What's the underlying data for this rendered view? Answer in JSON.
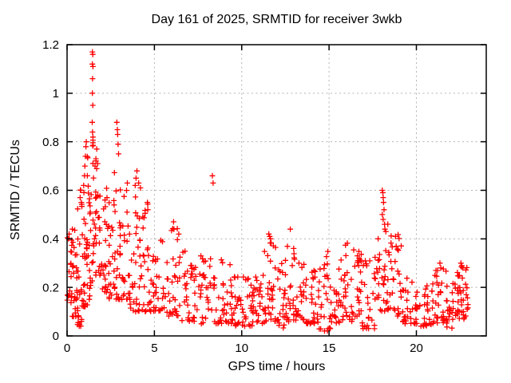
{
  "page": {
    "background": "#ffffff"
  },
  "chart_data": {
    "type": "scatter",
    "title": "Day 161 of 2025, SRMTID for receiver 3wkb",
    "xlabel": "GPS time / hours",
    "ylabel": "SRMTID / TECUs",
    "xlim": [
      0,
      24
    ],
    "ylim": [
      0,
      1.2
    ],
    "xticks": [
      0,
      5,
      10,
      15,
      20
    ],
    "xtick_labels": [
      "0",
      "5",
      "10",
      "15",
      "20"
    ],
    "yticks": [
      0,
      0.2,
      0.4,
      0.6,
      0.8,
      1,
      1.2
    ],
    "ytick_labels": [
      "0",
      "0.2",
      "0.4",
      "0.6",
      "0.8",
      "1",
      "1.2"
    ],
    "grid": {
      "visible": true,
      "style": "dashed",
      "color": "#b3b3b3"
    },
    "border_color": "#000000",
    "marker": {
      "shape": "plus",
      "color": "#ff0000",
      "size": 7
    },
    "legend": "none",
    "data_extent_hours": [
      0,
      23
    ],
    "max_point": {
      "hour": 1.45,
      "value": 1.17
    },
    "series": [
      {
        "name": "SRMTID",
        "feature_points": [
          [
            0.08,
            0.4
          ],
          [
            0.12,
            0.42
          ],
          [
            0.3,
            0.44
          ],
          [
            0.75,
            0.57
          ],
          [
            0.78,
            0.6
          ],
          [
            0.82,
            0.55
          ],
          [
            0.95,
            0.62
          ],
          [
            1.0,
            0.66
          ],
          [
            1.02,
            0.7
          ],
          [
            1.05,
            0.74
          ],
          [
            1.08,
            0.78
          ],
          [
            1.1,
            0.8
          ],
          [
            1.45,
            1.17
          ],
          [
            1.47,
            1.16
          ],
          [
            1.45,
            1.12
          ],
          [
            1.48,
            1.11
          ],
          [
            1.46,
            1.06
          ],
          [
            1.45,
            1.0
          ],
          [
            1.47,
            0.95
          ],
          [
            1.44,
            0.88
          ],
          [
            1.46,
            0.84
          ],
          [
            1.6,
            0.7
          ],
          [
            1.65,
            0.73
          ],
          [
            1.7,
            0.77
          ],
          [
            1.75,
            0.71
          ],
          [
            2.85,
            0.88
          ],
          [
            2.88,
            0.85
          ],
          [
            2.9,
            0.83
          ],
          [
            2.92,
            0.79
          ],
          [
            2.95,
            0.75
          ],
          [
            3.9,
            0.62
          ],
          [
            3.95,
            0.65
          ],
          [
            4.0,
            0.68
          ],
          [
            4.1,
            0.63
          ],
          [
            4.2,
            0.61
          ],
          [
            4.6,
            0.55
          ],
          [
            4.62,
            0.52
          ],
          [
            6.1,
            0.47
          ],
          [
            6.12,
            0.44
          ],
          [
            8.32,
            0.66
          ],
          [
            8.36,
            0.63
          ],
          [
            11.55,
            0.42
          ],
          [
            11.6,
            0.41
          ],
          [
            11.65,
            0.4
          ],
          [
            12.78,
            0.44
          ],
          [
            16.62,
            0.33
          ],
          [
            16.65,
            0.31
          ],
          [
            16.7,
            0.29
          ],
          [
            16.72,
            0.32
          ],
          [
            18.05,
            0.6
          ],
          [
            18.08,
            0.59
          ],
          [
            18.1,
            0.57
          ],
          [
            18.12,
            0.55
          ],
          [
            18.15,
            0.52
          ],
          [
            18.05,
            0.5
          ],
          [
            18.1,
            0.48
          ],
          [
            18.18,
            0.46
          ],
          [
            18.2,
            0.44
          ],
          [
            18.25,
            0.43
          ],
          [
            18.8,
            0.41
          ],
          [
            21.35,
            0.3
          ],
          [
            21.4,
            0.28
          ],
          [
            22.55,
            0.3
          ],
          [
            22.6,
            0.29
          ],
          [
            22.65,
            0.28
          ]
        ],
        "band_format": "[hour_start, hour_end, y_min, y_max, count, low_bias]",
        "density_bands": [
          [
            0.0,
            0.3,
            0.13,
            0.42,
            18,
            1.5
          ],
          [
            0.3,
            0.6,
            0.08,
            0.45,
            22,
            1.8
          ],
          [
            0.6,
            0.9,
            0.04,
            0.62,
            26,
            1.6
          ],
          [
            0.9,
            1.2,
            0.12,
            0.78,
            26,
            2.0
          ],
          [
            1.2,
            1.45,
            0.15,
            0.68,
            20,
            1.5
          ],
          [
            1.45,
            1.55,
            0.3,
            0.82,
            12,
            1.2
          ],
          [
            1.55,
            1.9,
            0.25,
            0.77,
            24,
            1.6
          ],
          [
            1.9,
            2.3,
            0.18,
            0.65,
            22,
            1.6
          ],
          [
            2.3,
            2.7,
            0.14,
            0.58,
            22,
            1.6
          ],
          [
            2.7,
            3.05,
            0.15,
            0.8,
            24,
            2.0
          ],
          [
            3.05,
            3.6,
            0.15,
            0.66,
            26,
            1.8
          ],
          [
            3.6,
            4.35,
            0.1,
            0.6,
            34,
            2.2
          ],
          [
            4.35,
            4.8,
            0.1,
            0.55,
            22,
            1.8
          ],
          [
            4.8,
            5.6,
            0.1,
            0.45,
            30,
            1.8
          ],
          [
            5.6,
            6.4,
            0.08,
            0.45,
            30,
            1.9
          ],
          [
            6.4,
            7.6,
            0.06,
            0.35,
            40,
            1.7
          ],
          [
            7.6,
            8.6,
            0.05,
            0.35,
            36,
            1.7
          ],
          [
            8.6,
            9.6,
            0.05,
            0.33,
            36,
            1.8
          ],
          [
            9.6,
            10.6,
            0.04,
            0.28,
            38,
            1.7
          ],
          [
            10.6,
            11.3,
            0.05,
            0.3,
            28,
            1.7
          ],
          [
            11.3,
            12.1,
            0.06,
            0.42,
            34,
            1.9
          ],
          [
            12.1,
            12.5,
            0.03,
            0.35,
            18,
            1.7
          ],
          [
            12.5,
            13.0,
            0.05,
            0.37,
            22,
            1.8
          ],
          [
            13.0,
            13.6,
            0.06,
            0.33,
            24,
            1.7
          ],
          [
            13.6,
            14.4,
            0.05,
            0.3,
            30,
            1.7
          ],
          [
            14.4,
            15.1,
            0.02,
            0.35,
            28,
            1.7
          ],
          [
            15.1,
            15.6,
            0.05,
            0.33,
            20,
            1.7
          ],
          [
            15.6,
            16.4,
            0.06,
            0.4,
            30,
            1.8
          ],
          [
            16.4,
            16.9,
            0.08,
            0.38,
            20,
            1.5
          ],
          [
            16.9,
            17.8,
            0.03,
            0.33,
            30,
            1.7
          ],
          [
            17.8,
            18.45,
            0.1,
            0.47,
            30,
            1.4
          ],
          [
            18.45,
            19.2,
            0.08,
            0.42,
            28,
            1.7
          ],
          [
            19.2,
            20.2,
            0.05,
            0.25,
            34,
            1.6
          ],
          [
            20.2,
            21.0,
            0.04,
            0.22,
            30,
            1.6
          ],
          [
            21.0,
            21.7,
            0.05,
            0.3,
            26,
            1.5
          ],
          [
            21.7,
            22.15,
            0.03,
            0.22,
            20,
            1.6
          ],
          [
            22.15,
            22.95,
            0.07,
            0.3,
            40,
            1.3
          ]
        ],
        "random_seed": 161
      }
    ]
  }
}
